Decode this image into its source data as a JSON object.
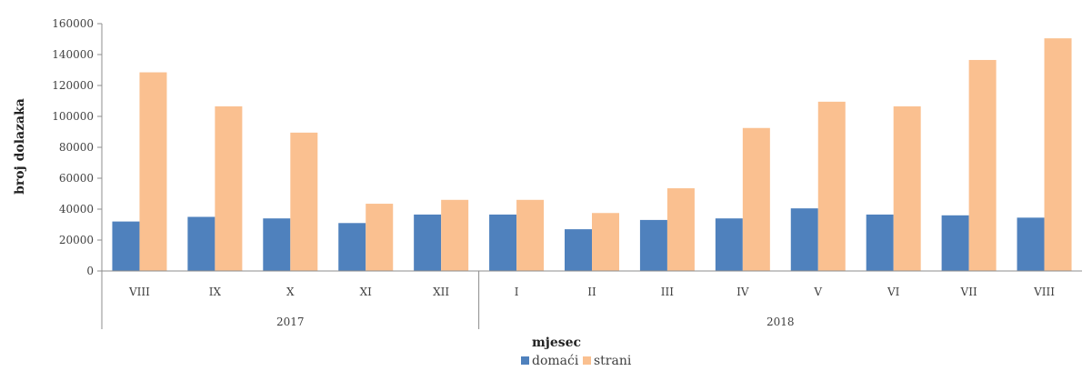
{
  "chart_data": {
    "type": "bar",
    "categories": [
      "VIII",
      "IX",
      "X",
      "XI",
      "XII",
      "I",
      "II",
      "III",
      "IV",
      "V",
      "VI",
      "VII",
      "VIII"
    ],
    "groups": [
      {
        "label": "2017",
        "count": 5
      },
      {
        "label": "2018",
        "count": 8
      }
    ],
    "series": [
      {
        "name": "domaći",
        "color": "#4F81BD",
        "values": [
          32000,
          35000,
          34000,
          31000,
          36500,
          36500,
          27000,
          33000,
          34000,
          40500,
          36500,
          36000,
          34500
        ]
      },
      {
        "name": "strani",
        "color": "#FAC090",
        "values": [
          128500,
          106500,
          89500,
          43500,
          46000,
          46000,
          37500,
          53500,
          92500,
          109500,
          106500,
          136500,
          150500
        ]
      }
    ],
    "title": "",
    "xlabel": "mjesec",
    "ylabel": "broj dolazaka",
    "ylim": [
      0,
      160000
    ],
    "yticks": [
      "0",
      "20000",
      "40000",
      "60000",
      "80000",
      "100000",
      "120000",
      "140000",
      "160000"
    ],
    "grid": false,
    "legend": "bottom-center"
  }
}
